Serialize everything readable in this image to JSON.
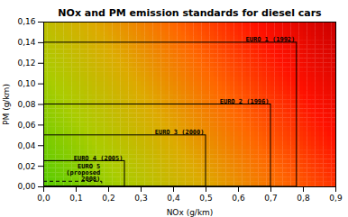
{
  "chart_data": {
    "type": "rect",
    "title": "NOx and PM emission standards for diesel cars",
    "xlabel": "NOx (g/km)",
    "ylabel": "PM (g/km)",
    "xlim": [
      0.0,
      0.9
    ],
    "ylim": [
      0.0,
      0.16
    ],
    "xticks": [
      {
        "value": 0.0,
        "label": "0,0"
      },
      {
        "value": 0.1,
        "label": "0,1"
      },
      {
        "value": 0.2,
        "label": "0,2"
      },
      {
        "value": 0.3,
        "label": "0,3"
      },
      {
        "value": 0.4,
        "label": "0,4"
      },
      {
        "value": 0.5,
        "label": "0,5"
      },
      {
        "value": 0.6,
        "label": "0,6"
      },
      {
        "value": 0.7,
        "label": "0,7"
      },
      {
        "value": 0.8,
        "label": "0,8"
      },
      {
        "value": 0.9,
        "label": "0,9"
      }
    ],
    "yticks": [
      {
        "value": 0.0,
        "label": "0,00"
      },
      {
        "value": 0.02,
        "label": "0,02"
      },
      {
        "value": 0.04,
        "label": "0,04"
      },
      {
        "value": 0.06,
        "label": "0,06"
      },
      {
        "value": 0.08,
        "label": "0,08"
      },
      {
        "value": 0.1,
        "label": "0,10"
      },
      {
        "value": 0.12,
        "label": "0,12"
      },
      {
        "value": 0.14,
        "label": "0,14"
      },
      {
        "value": 0.16,
        "label": "0,16"
      }
    ],
    "series": [
      {
        "name": "EURO 1 (1992)",
        "x": [
          0.78
        ],
        "values": [
          0.14
        ],
        "line_style": "solid"
      },
      {
        "name": "EURO 2 (1996)",
        "x": [
          0.7
        ],
        "values": [
          0.08
        ],
        "line_style": "solid"
      },
      {
        "name": "EURO 3 (2000)",
        "x": [
          0.5
        ],
        "values": [
          0.05
        ],
        "line_style": "solid"
      },
      {
        "name": "EURO 4 (2005)",
        "x": [
          0.25
        ],
        "values": [
          0.025
        ],
        "line_style": "solid"
      },
      {
        "name": "EURO 5\n(proposed\n2008)",
        "x": [
          0.18
        ],
        "values": [
          0.005
        ],
        "line_style": "dashed"
      }
    ],
    "colors": [
      "#55cc00",
      "#aacc00",
      "#ddaa00",
      "#ff6600",
      "#ff1100",
      "#cc0000"
    ]
  }
}
